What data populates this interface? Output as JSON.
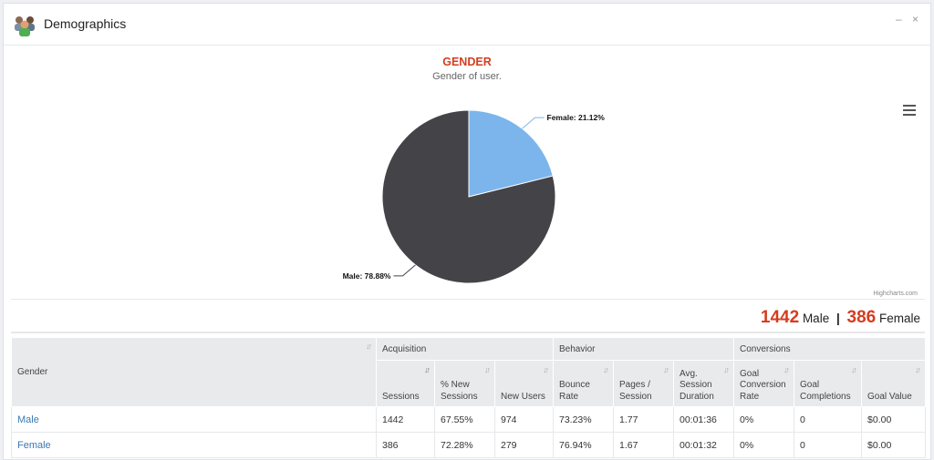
{
  "header": {
    "title": "Demographics",
    "minimize_label": "–",
    "close_label": "×",
    "icon": "users-group-icon"
  },
  "chart": {
    "menu_icon": "hamburger-menu-icon",
    "credit": "Highcharts.com"
  },
  "chart_data": {
    "type": "pie",
    "title": "GENDER",
    "subtitle": "Gender of user.",
    "slices": [
      {
        "label": "Female",
        "value": 21.12,
        "display": "Female: 21.12%",
        "color": "#7cb5ec"
      },
      {
        "label": "Male",
        "value": 78.88,
        "display": "Male: 78.88%",
        "color": "#434348"
      }
    ]
  },
  "summary": {
    "male_count": "1442",
    "male_label": "Male",
    "separator": "|",
    "female_count": "386",
    "female_label": "Female"
  },
  "table": {
    "sort_glyph": "↓↑",
    "groups": [
      "Acquisition",
      "Behavior",
      "Conversions"
    ],
    "gender_header": "Gender",
    "columns": [
      "Sessions",
      "% New Sessions",
      "New Users",
      "Bounce Rate",
      "Pages / Session",
      "Avg. Session Duration",
      "Goal Conversion Rate",
      "Goal Completions",
      "Goal Value"
    ],
    "rows": [
      {
        "gender": "Male",
        "cells": [
          "1442",
          "67.55%",
          "974",
          "73.23%",
          "1.77",
          "00:01:36",
          "0%",
          "0",
          "$0.00"
        ]
      },
      {
        "gender": "Female",
        "cells": [
          "386",
          "72.28%",
          "279",
          "76.94%",
          "1.67",
          "00:01:32",
          "0%",
          "0",
          "$0.00"
        ]
      }
    ]
  }
}
